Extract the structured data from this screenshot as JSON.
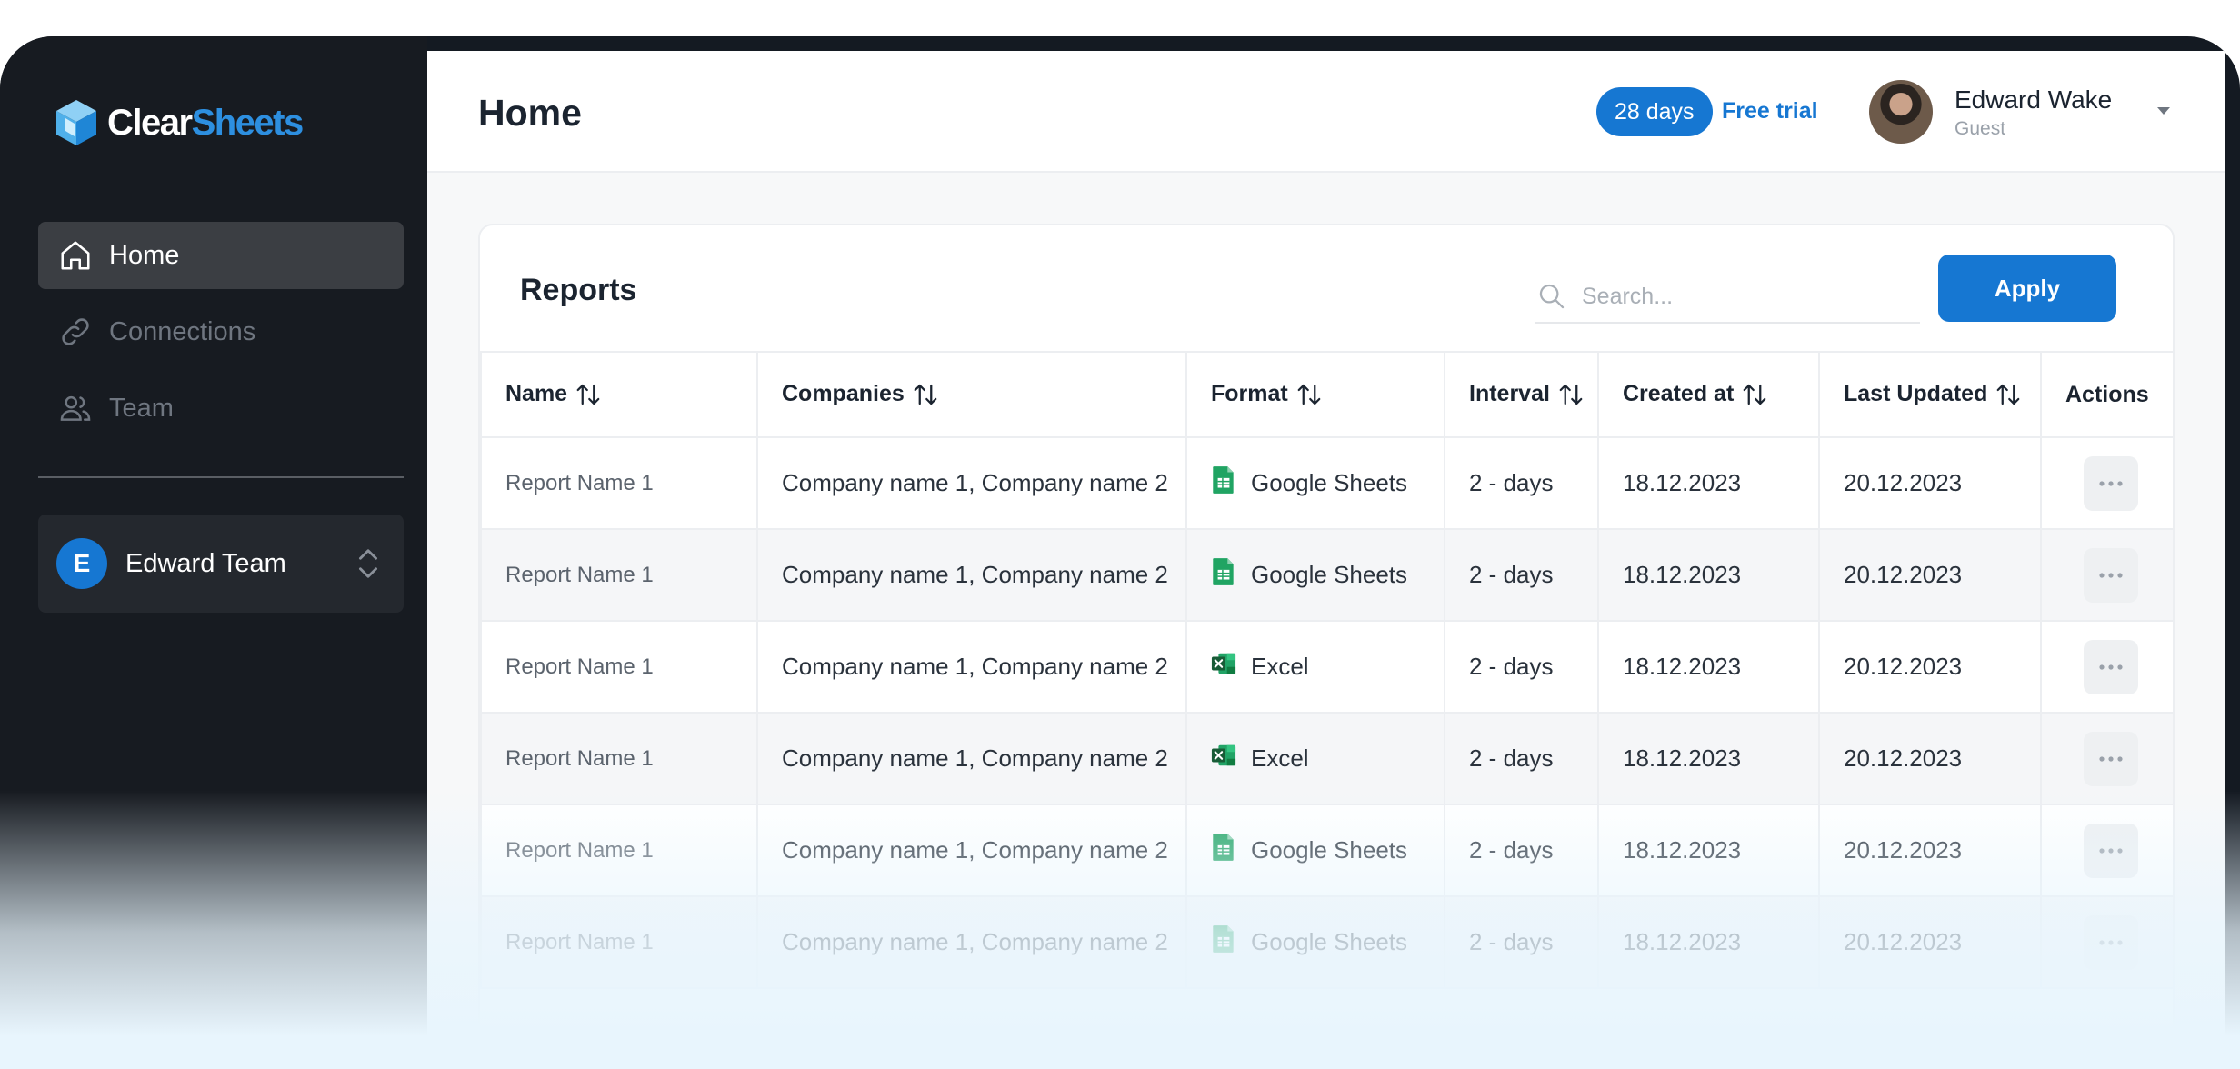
{
  "app": {
    "logo_part1": "Clear",
    "logo_part2": "Sheets",
    "accent_color": "#1677d2"
  },
  "sidebar": {
    "items": [
      {
        "label": "Home",
        "icon": "home-icon",
        "active": true
      },
      {
        "label": "Connections",
        "icon": "link-icon",
        "active": false
      },
      {
        "label": "Team",
        "icon": "users-icon",
        "active": false
      }
    ],
    "team": {
      "initial": "E",
      "name": "Edward Team"
    }
  },
  "header": {
    "title": "Home",
    "trial_days": "28 days",
    "trial_label": "Free trial",
    "user_name": "Edward Wake",
    "user_role": "Guest"
  },
  "reports": {
    "title": "Reports",
    "search_placeholder": "Search...",
    "apply_label": "Apply",
    "columns": [
      "Name",
      "Companies",
      "Format",
      "Interval",
      "Created at",
      "Last Updated",
      "Actions"
    ],
    "rows": [
      {
        "name": "Report Name 1",
        "companies": "Company name 1,  Company name 2",
        "format": "Google Sheets",
        "format_icon": "google-sheets-icon",
        "interval": "2 - days",
        "created": "18.12.2023",
        "updated": "20.12.2023"
      },
      {
        "name": "Report Name 1",
        "companies": "Company name 1,  Company name 2",
        "format": "Google Sheets",
        "format_icon": "google-sheets-icon",
        "interval": "2 - days",
        "created": "18.12.2023",
        "updated": "20.12.2023"
      },
      {
        "name": "Report Name 1",
        "companies": "Company name 1,  Company name 2",
        "format": "Excel",
        "format_icon": "excel-icon",
        "interval": "2 - days",
        "created": "18.12.2023",
        "updated": "20.12.2023"
      },
      {
        "name": "Report Name 1",
        "companies": "Company name 1,  Company name 2",
        "format": "Excel",
        "format_icon": "excel-icon",
        "interval": "2 - days",
        "created": "18.12.2023",
        "updated": "20.12.2023"
      },
      {
        "name": "Report Name 1",
        "companies": "Company name 1,  Company name 2",
        "format": "Google Sheets",
        "format_icon": "google-sheets-icon",
        "interval": "2 - days",
        "created": "18.12.2023",
        "updated": "20.12.2023"
      },
      {
        "name": "Report Name 1",
        "companies": "Company name 1,  Company name 2",
        "format": "Google Sheets",
        "format_icon": "google-sheets-icon",
        "interval": "2 - days",
        "created": "18.12.2023",
        "updated": "20.12.2023"
      }
    ]
  }
}
